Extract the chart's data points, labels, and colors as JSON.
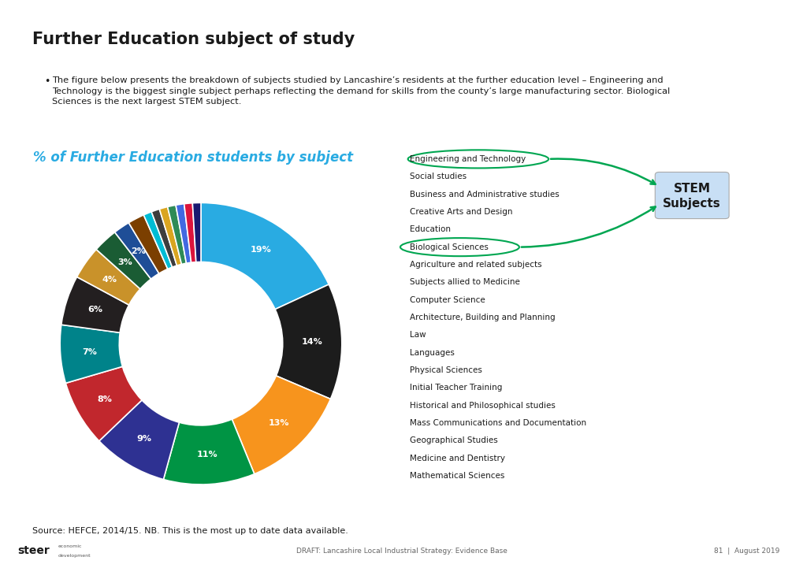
{
  "title": "Further Education subject of study",
  "subtitle": "% of Further Education students by subject",
  "subtitle_color": "#29ABE2",
  "body_text": "The figure below presents the breakdown of subjects studied by Lancashire’s residents at the further education level – Engineering and\nTechnology is the biggest single subject perhaps reflecting the demand for skills from the county’s large manufacturing sector. Biological\nSciences is the next largest STEM subject.",
  "source_text": "Source: HEFCE, 2014/15. NB. This is the most up to date data available.",
  "footer_text": "DRAFT: Lancashire Local Industrial Strategy: Evidence Base",
  "footer_page": "81  |  August 2019",
  "segments": [
    {
      "label": "Engineering and Technology",
      "value": 19,
      "color": "#29ABE2",
      "pct": "19%"
    },
    {
      "label": "Social studies",
      "value": 14,
      "color": "#1C1C1C",
      "pct": "14%"
    },
    {
      "label": "Business and Administrative studies",
      "value": 13,
      "color": "#F7941D",
      "pct": "13%"
    },
    {
      "label": "Creative Arts and Design",
      "value": 11,
      "color": "#009444",
      "pct": "11%"
    },
    {
      "label": "Education",
      "value": 9,
      "color": "#2E3192",
      "pct": "9%"
    },
    {
      "label": "Biological Sciences",
      "value": 8,
      "color": "#C1272D",
      "pct": "8%"
    },
    {
      "label": "Agriculture and related subjects",
      "value": 7,
      "color": "#00838A",
      "pct": "7%"
    },
    {
      "label": "Subjects allied to Medicine",
      "value": 6,
      "color": "#231F20",
      "pct": "6%"
    },
    {
      "label": "Computer Science",
      "value": 4,
      "color": "#C9922A",
      "pct": "4%"
    },
    {
      "label": "Architecture, Building and Planning",
      "value": 3,
      "color": "#1A5C34",
      "pct": "3%"
    },
    {
      "label": "Law",
      "value": 2,
      "color": "#1F4E97",
      "pct": "2%"
    },
    {
      "label": "Languages",
      "value": 2,
      "color": "#7B3F00",
      "pct": ""
    },
    {
      "label": "Physical Sciences",
      "value": 1,
      "color": "#00BCD4",
      "pct": ""
    },
    {
      "label": "Initial Teacher Training",
      "value": 1,
      "color": "#3D3D3D",
      "pct": ""
    },
    {
      "label": "Historical and Philosophical studies",
      "value": 1,
      "color": "#DAA520",
      "pct": ""
    },
    {
      "label": "Mass Communications and Documentation",
      "value": 1,
      "color": "#2E8B57",
      "pct": ""
    },
    {
      "label": "Geographical Studies",
      "value": 1,
      "color": "#4169E1",
      "pct": ""
    },
    {
      "label": "Medicine and Dentistry",
      "value": 1,
      "color": "#DC143C",
      "pct": ""
    },
    {
      "label": "Mathematical Sciences",
      "value": 1,
      "color": "#191970",
      "pct": ""
    }
  ],
  "bg_color": "#FFFFFF",
  "accent_color": "#29ABE2",
  "stem_box_color": "#C8DFF5",
  "stem_arrow_color": "#00A651",
  "stem_circle_color": "#00A651"
}
